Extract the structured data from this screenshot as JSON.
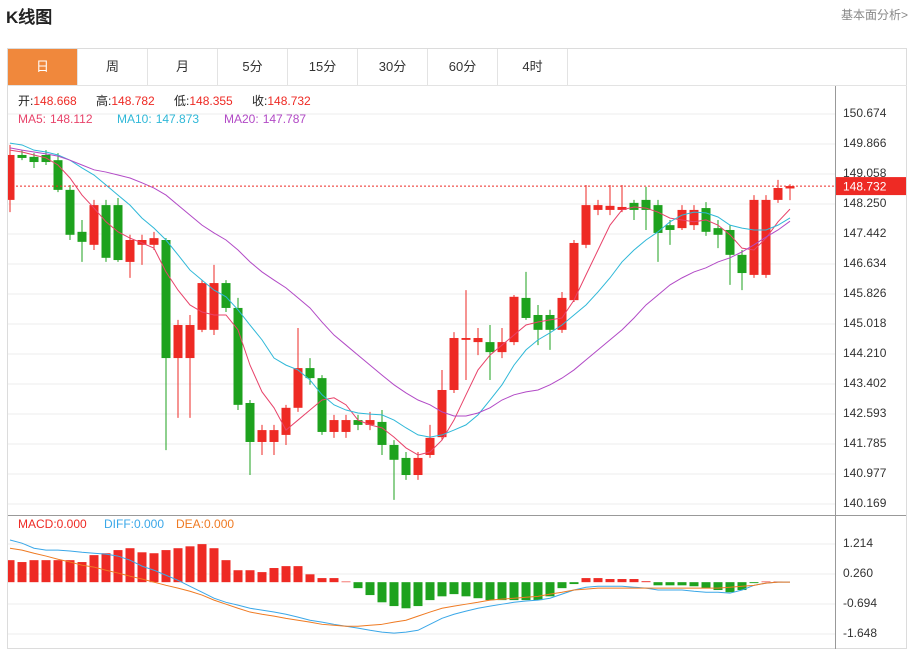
{
  "header": {
    "title": "K线图",
    "link": "基本面分析>"
  },
  "tabs": {
    "items": [
      "日",
      "周",
      "月",
      "5分",
      "15分",
      "30分",
      "60分",
      "4时"
    ],
    "active": 0
  },
  "chart_data": [
    {
      "type": "candlestick",
      "info_labels": {
        "open": "开:",
        "high": "高:",
        "low": "低:",
        "close": "收:"
      },
      "up_color": "#ee2a24",
      "down_color": "#1ea21e",
      "open": [
        148.36,
        149.57,
        149.52,
        149.57,
        149.43,
        148.63,
        147.5,
        147.15,
        148.22,
        148.22,
        146.69,
        147.15,
        147.15,
        147.28,
        144.1,
        144.1,
        144.86,
        144.86,
        146.12,
        145.45,
        142.89,
        141.84,
        141.84,
        142.03,
        142.76,
        143.83,
        143.56,
        142.11,
        142.11,
        142.43,
        142.3,
        142.38,
        141.76,
        141.41,
        140.95,
        141.49,
        141.97,
        143.24,
        144.59,
        144.53,
        144.53,
        144.26,
        144.53,
        145.72,
        145.26,
        145.26,
        144.86,
        145.66,
        147.15,
        148.09,
        148.09,
        148.09,
        148.28,
        148.36,
        148.22,
        147.68,
        147.6,
        147.68,
        148.14,
        147.6,
        147.55,
        146.88,
        146.34,
        146.34,
        148.36,
        148.668
      ],
      "high": [
        149.84,
        149.7,
        149.62,
        149.7,
        149.62,
        148.76,
        147.82,
        148.36,
        148.36,
        148.41,
        147.42,
        147.42,
        147.5,
        147.33,
        145.13,
        145.26,
        146.2,
        146.61,
        146.2,
        145.72,
        142.97,
        142.3,
        142.3,
        142.84,
        144.91,
        144.1,
        143.64,
        142.57,
        142.57,
        142.57,
        142.65,
        142.7,
        141.89,
        141.57,
        141.57,
        142.3,
        143.78,
        144.8,
        145.93,
        144.91,
        144.99,
        144.91,
        145.8,
        146.42,
        145.53,
        145.4,
        145.88,
        147.28,
        148.76,
        148.36,
        148.76,
        148.76,
        148.36,
        148.71,
        148.36,
        147.82,
        148.22,
        148.22,
        148.3,
        147.82,
        147.68,
        147.01,
        148.49,
        148.49,
        148.9,
        148.782
      ],
      "low": [
        148.03,
        149.43,
        149.22,
        149.3,
        148.57,
        147.28,
        146.69,
        147.01,
        146.69,
        146.69,
        146.26,
        146.61,
        147.01,
        141.62,
        142.49,
        142.49,
        144.8,
        144.72,
        145.34,
        142.7,
        140.95,
        141.49,
        141.49,
        141.76,
        142.65,
        143.38,
        142.03,
        141.95,
        141.95,
        142.16,
        142.16,
        141.49,
        140.28,
        140.82,
        140.82,
        141.41,
        141.89,
        143.16,
        143.51,
        144.18,
        143.51,
        144.1,
        144.45,
        145.13,
        144.45,
        144.32,
        144.78,
        145.61,
        147.06,
        147.95,
        147.95,
        148.03,
        147.82,
        147.55,
        146.69,
        147.15,
        147.55,
        147.55,
        147.39,
        147.06,
        146.07,
        145.93,
        146.26,
        146.26,
        148.28,
        148.355
      ],
      "close": [
        149.57,
        149.49,
        149.38,
        149.38,
        148.63,
        147.42,
        147.23,
        148.22,
        146.8,
        146.74,
        147.28,
        147.28,
        147.33,
        144.1,
        144.99,
        144.99,
        146.12,
        146.12,
        145.45,
        142.84,
        141.84,
        142.16,
        142.16,
        142.76,
        143.83,
        143.56,
        142.11,
        142.43,
        142.43,
        142.3,
        142.43,
        141.76,
        141.36,
        140.95,
        141.41,
        141.95,
        143.24,
        144.64,
        144.64,
        144.64,
        144.26,
        144.53,
        145.75,
        145.18,
        144.86,
        144.86,
        145.72,
        147.2,
        148.22,
        148.22,
        148.2,
        148.17,
        148.09,
        148.09,
        147.47,
        147.55,
        148.09,
        148.09,
        147.5,
        147.42,
        146.88,
        146.39,
        148.36,
        148.36,
        148.68,
        148.732
      ],
      "overlays": [
        {
          "name": "MA5:",
          "color": "#e8436a",
          "values": [
            149.7,
            149.65,
            149.57,
            149.49,
            149.3,
            148.95,
            148.49,
            148.14,
            147.77,
            147.5,
            147.33,
            147.2,
            147.06,
            146.42,
            145.93,
            145.53,
            145.34,
            145.26,
            145.26,
            144.86,
            143.91,
            143.19,
            142.76,
            142.16,
            142.43,
            142.7,
            142.97,
            143.03,
            142.84,
            142.43,
            142.3,
            142.22,
            141.97,
            141.68,
            141.49,
            141.57,
            141.89,
            142.43,
            143.11,
            143.78,
            144.18,
            144.45,
            144.72,
            144.99,
            145.07,
            145.13,
            145.18,
            145.66,
            146.34,
            147.01,
            147.68,
            148.09,
            148.17,
            148.14,
            148.03,
            147.87,
            147.82,
            147.77,
            147.82,
            147.68,
            147.42,
            147.06,
            147.01,
            147.33,
            147.77,
            148.112
          ]
        },
        {
          "name": "MA10:",
          "color": "#2fb8d8",
          "values": [
            149.89,
            149.84,
            149.7,
            149.65,
            149.57,
            149.43,
            149.22,
            149.03,
            148.76,
            148.49,
            148.22,
            147.87,
            147.6,
            147.28,
            146.88,
            146.47,
            146.2,
            145.93,
            145.75,
            145.4,
            144.99,
            144.59,
            144.1,
            143.91,
            143.78,
            143.51,
            143.11,
            142.84,
            142.7,
            142.62,
            142.59,
            142.57,
            142.43,
            142.22,
            142.03,
            141.97,
            142.03,
            142.16,
            142.3,
            142.57,
            142.97,
            143.38,
            143.91,
            144.32,
            144.59,
            144.78,
            144.99,
            145.26,
            145.53,
            145.88,
            146.26,
            146.69,
            147.01,
            147.28,
            147.5,
            147.77,
            147.95,
            148.03,
            148.01,
            147.9,
            147.68,
            147.6,
            147.55,
            147.55,
            147.68,
            147.873
          ]
        },
        {
          "name": "MA20:",
          "color": "#b24ac6",
          "values": [
            149.76,
            149.7,
            149.65,
            149.6,
            149.54,
            149.43,
            149.3,
            149.17,
            149.11,
            149.03,
            148.95,
            148.82,
            148.68,
            148.49,
            148.22,
            147.95,
            147.68,
            147.47,
            147.28,
            147.01,
            146.69,
            146.42,
            146.2,
            145.99,
            145.72,
            145.45,
            145.07,
            144.72,
            144.45,
            144.18,
            143.91,
            143.64,
            143.38,
            143.16,
            142.97,
            142.84,
            142.65,
            142.54,
            142.54,
            142.62,
            142.76,
            142.97,
            143.11,
            143.19,
            143.24,
            143.38,
            143.56,
            143.78,
            144.05,
            144.32,
            144.59,
            144.86,
            145.18,
            145.53,
            145.8,
            146.07,
            146.26,
            146.42,
            146.53,
            146.69,
            146.8,
            146.96,
            147.15,
            147.36,
            147.55,
            147.787
          ]
        }
      ],
      "ylim": [
        139.873,
        151.374
      ],
      "yticks": [
        150.674,
        149.866,
        149.058,
        {
          "value": 148.25,
          "label": "148.250"
        },
        147.442,
        146.634,
        145.826,
        145.018,
        {
          "value": 144.21,
          "label": "144.210"
        },
        143.402,
        142.593,
        141.785,
        140.977,
        140.169
      ],
      "grid": true,
      "last_price_line": true
    },
    {
      "type": "macd",
      "series": [
        {
          "name": "MACD:",
          "legend_value": "0.000",
          "color": "#ee2a24",
          "down_color": "#1ea21e",
          "values": [
            0.7,
            0.64,
            0.7,
            0.7,
            0.7,
            0.7,
            0.64,
            0.86,
            0.92,
            1.02,
            1.08,
            0.95,
            0.92,
            1.02,
            1.08,
            1.14,
            1.21,
            1.08,
            0.7,
            0.38,
            0.38,
            0.32,
            0.45,
            0.51,
            0.51,
            0.25,
            0.13,
            0.13,
            0.02,
            -0.19,
            -0.41,
            -0.64,
            -0.76,
            -0.83,
            -0.76,
            -0.57,
            -0.45,
            -0.38,
            -0.45,
            -0.51,
            -0.57,
            -0.57,
            -0.57,
            -0.57,
            -0.57,
            -0.45,
            -0.19,
            -0.06,
            0.13,
            0.13,
            0.1,
            0.1,
            0.1,
            0.03,
            -0.1,
            -0.1,
            -0.1,
            -0.13,
            -0.19,
            -0.25,
            -0.32,
            -0.25,
            -0.03,
            0.02,
            0.02,
            0
          ]
        },
        {
          "name": "DIFF:",
          "legend_value": "0.000",
          "color": "#3aa7e8",
          "values": [
            1.34,
            1.24,
            1.08,
            1.02,
            1.02,
            0.99,
            0.95,
            0.92,
            0.89,
            0.83,
            0.7,
            0.51,
            0.38,
            0.22,
            0.06,
            -0.13,
            -0.32,
            -0.51,
            -0.64,
            -0.73,
            -0.83,
            -0.89,
            -0.95,
            -1.02,
            -1.11,
            -1.21,
            -1.27,
            -1.34,
            -1.4,
            -1.46,
            -1.53,
            -1.59,
            -1.62,
            -1.59,
            -1.53,
            -1.34,
            -1.15,
            -1.02,
            -0.92,
            -0.83,
            -0.76,
            -0.7,
            -0.64,
            -0.6,
            -0.57,
            -0.51,
            -0.38,
            -0.25,
            -0.16,
            -0.13,
            -0.13,
            -0.13,
            -0.16,
            -0.19,
            -0.25,
            -0.25,
            -0.25,
            -0.29,
            -0.32,
            -0.32,
            -0.35,
            -0.25,
            -0.1,
            -0.03,
            0.0,
            0
          ]
        },
        {
          "name": "DEA:",
          "legend_value": "0.000",
          "color": "#ef7a22",
          "values": [
            1.08,
            1.02,
            0.92,
            0.83,
            0.73,
            0.64,
            0.54,
            0.48,
            0.38,
            0.29,
            0.19,
            0.1,
            0.0,
            -0.1,
            -0.19,
            -0.29,
            -0.41,
            -0.57,
            -0.7,
            -0.83,
            -0.95,
            -1.02,
            -1.08,
            -1.15,
            -1.21,
            -1.27,
            -1.34,
            -1.37,
            -1.4,
            -1.4,
            -1.37,
            -1.34,
            -1.27,
            -1.21,
            -1.08,
            -0.95,
            -0.83,
            -0.76,
            -0.7,
            -0.64,
            -0.57,
            -0.54,
            -0.51,
            -0.48,
            -0.45,
            -0.38,
            -0.32,
            -0.25,
            -0.22,
            -0.19,
            -0.19,
            -0.19,
            -0.19,
            -0.19,
            -0.19,
            -0.19,
            -0.19,
            -0.19,
            -0.19,
            -0.19,
            -0.16,
            -0.13,
            -0.1,
            -0.03,
            0.0,
            0
          ]
        }
      ],
      "ylim": [
        -2.125,
        2.136
      ],
      "yticks": [
        1.214,
        {
          "value": 0.26,
          "label": "0.260"
        },
        -0.694,
        -1.648
      ],
      "grid": true
    }
  ]
}
